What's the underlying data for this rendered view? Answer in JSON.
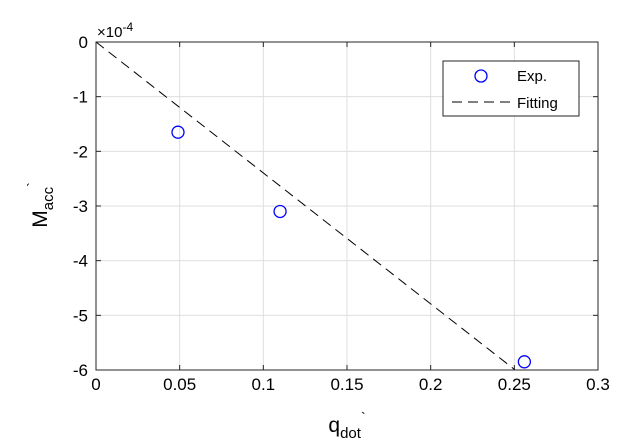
{
  "chart_data": {
    "type": "scatter",
    "xlabel": "q",
    "xlabel_subscript": "dot",
    "xlabel_suffix": "`",
    "ylabel": "M",
    "ylabel_subscript": "acc",
    "ylabel_suffix": "`",
    "y_exponent_base": "×10",
    "y_exponent_power": "-4",
    "xlim": [
      0,
      0.3
    ],
    "ylim": [
      -6,
      0
    ],
    "xticks": [
      0,
      0.05,
      0.1,
      0.15,
      0.2,
      0.25,
      0.3
    ],
    "xtick_labels": [
      "0",
      "0.05",
      "0.1",
      "0.15",
      "0.2",
      "0.25",
      "0.3"
    ],
    "yticks": [
      0,
      -1,
      -2,
      -3,
      -4,
      -5,
      -6
    ],
    "ytick_labels": [
      "0",
      "-1",
      "-2",
      "-3",
      "-4",
      "-5",
      "-6"
    ],
    "grid": true,
    "legend_position": "top-right",
    "series": [
      {
        "name": "Exp.",
        "kind": "scatter",
        "marker": "open-circle",
        "color": "#0000ff",
        "points": [
          {
            "x": 0.049,
            "y": -1.65
          },
          {
            "x": 0.11,
            "y": -3.1
          },
          {
            "x": 0.256,
            "y": -5.85
          }
        ]
      },
      {
        "name": "Fitting",
        "kind": "line",
        "style": "dashed",
        "color": "#000000",
        "points": [
          {
            "x": 0.0,
            "y": 0.0
          },
          {
            "x": 0.2505,
            "y": -6.0
          }
        ]
      }
    ]
  }
}
